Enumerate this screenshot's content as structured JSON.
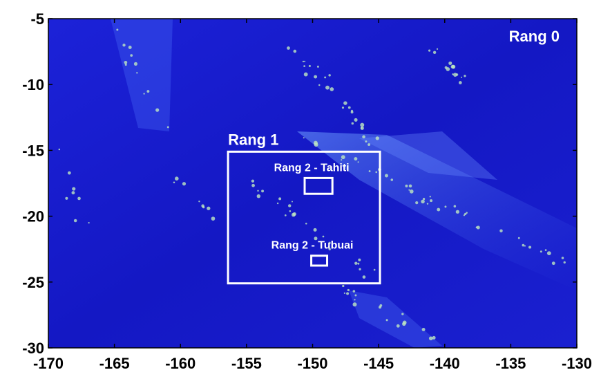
{
  "map": {
    "xlim": [
      -170,
      -130
    ],
    "ylim": [
      -30,
      -5
    ],
    "xticks": [
      -170,
      -165,
      -160,
      -155,
      -150,
      -145,
      -140,
      -135,
      -130
    ],
    "yticks": [
      -5,
      -10,
      -15,
      -20,
      -25,
      -30
    ],
    "domain_label": "Rang 0",
    "regions": [
      {
        "label": "Rang 1",
        "lon": [
          -156.4,
          -144.9
        ],
        "lat": [
          -15.1,
          -25.1
        ]
      },
      {
        "label": "Rang 2 - Tahiti",
        "lon": [
          -150.6,
          -148.5
        ],
        "lat": [
          -17.1,
          -18.3
        ]
      },
      {
        "label": "Rang 2 - Tubuai",
        "lon": [
          -150.1,
          -148.9
        ],
        "lat": [
          -23.0,
          -23.75
        ]
      }
    ]
  }
}
